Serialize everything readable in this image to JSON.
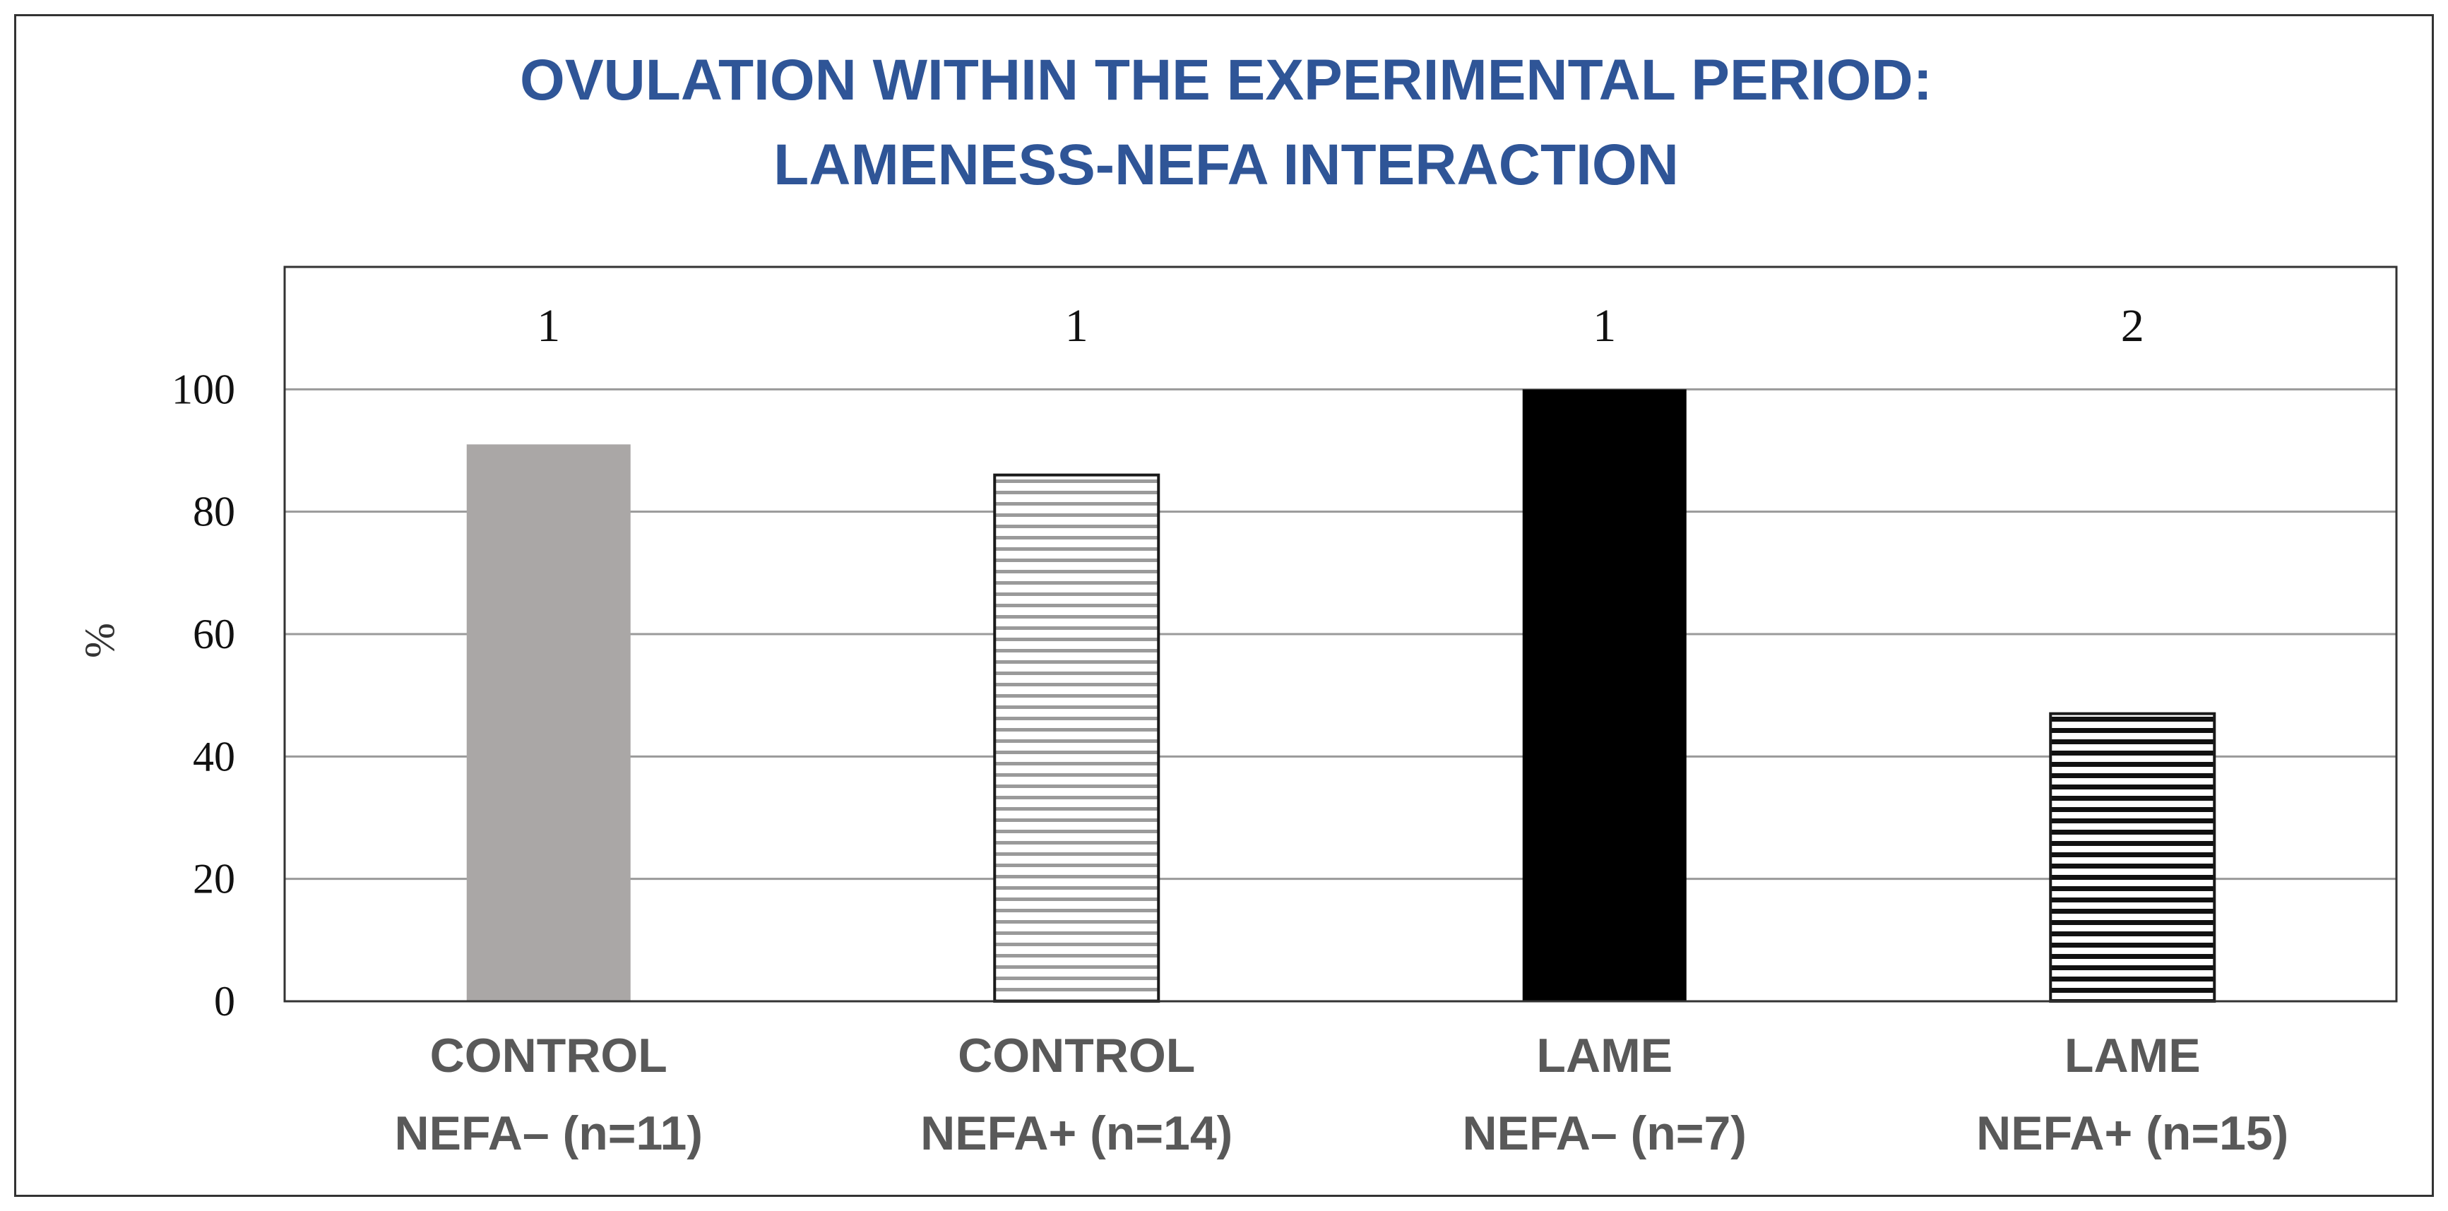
{
  "chart_data": {
    "type": "bar",
    "title": [
      "OVULATION WITHIN THE EXPERIMENTAL PERIOD:",
      "LAMENESS-NEFA INTERACTION"
    ],
    "categories": [
      [
        "CONTROL",
        "NEFA– (n=11)"
      ],
      [
        "CONTROL",
        "NEFA+ (n=14)"
      ],
      [
        "LAME",
        "NEFA– (n=7)"
      ],
      [
        "LAME",
        "NEFA+ (n=15)"
      ]
    ],
    "values": [
      91,
      86,
      100,
      47
    ],
    "annotations": [
      "1",
      "1",
      "1",
      "2"
    ],
    "ylabel": "%",
    "xlabel": "",
    "ylim": [
      0,
      120
    ],
    "yticks": [
      0,
      20,
      40,
      60,
      80,
      100
    ],
    "grid": true,
    "bar_styles": [
      {
        "fill": "#aaa7a6",
        "pattern": "solid"
      },
      {
        "fill": "#ffffff",
        "pattern": "stripes-light",
        "stripe_color": "#9a9a9a",
        "border": "#1a1a1a"
      },
      {
        "fill": "#000000",
        "pattern": "solid"
      },
      {
        "fill": "#ffffff",
        "pattern": "stripes-dark",
        "stripe_color": "#111111",
        "border": "#1a1a1a"
      }
    ]
  },
  "colors": {
    "title": "#2f5597",
    "category_label": "#595959",
    "grid": "#9a9a9a",
    "axis": "#333333"
  }
}
